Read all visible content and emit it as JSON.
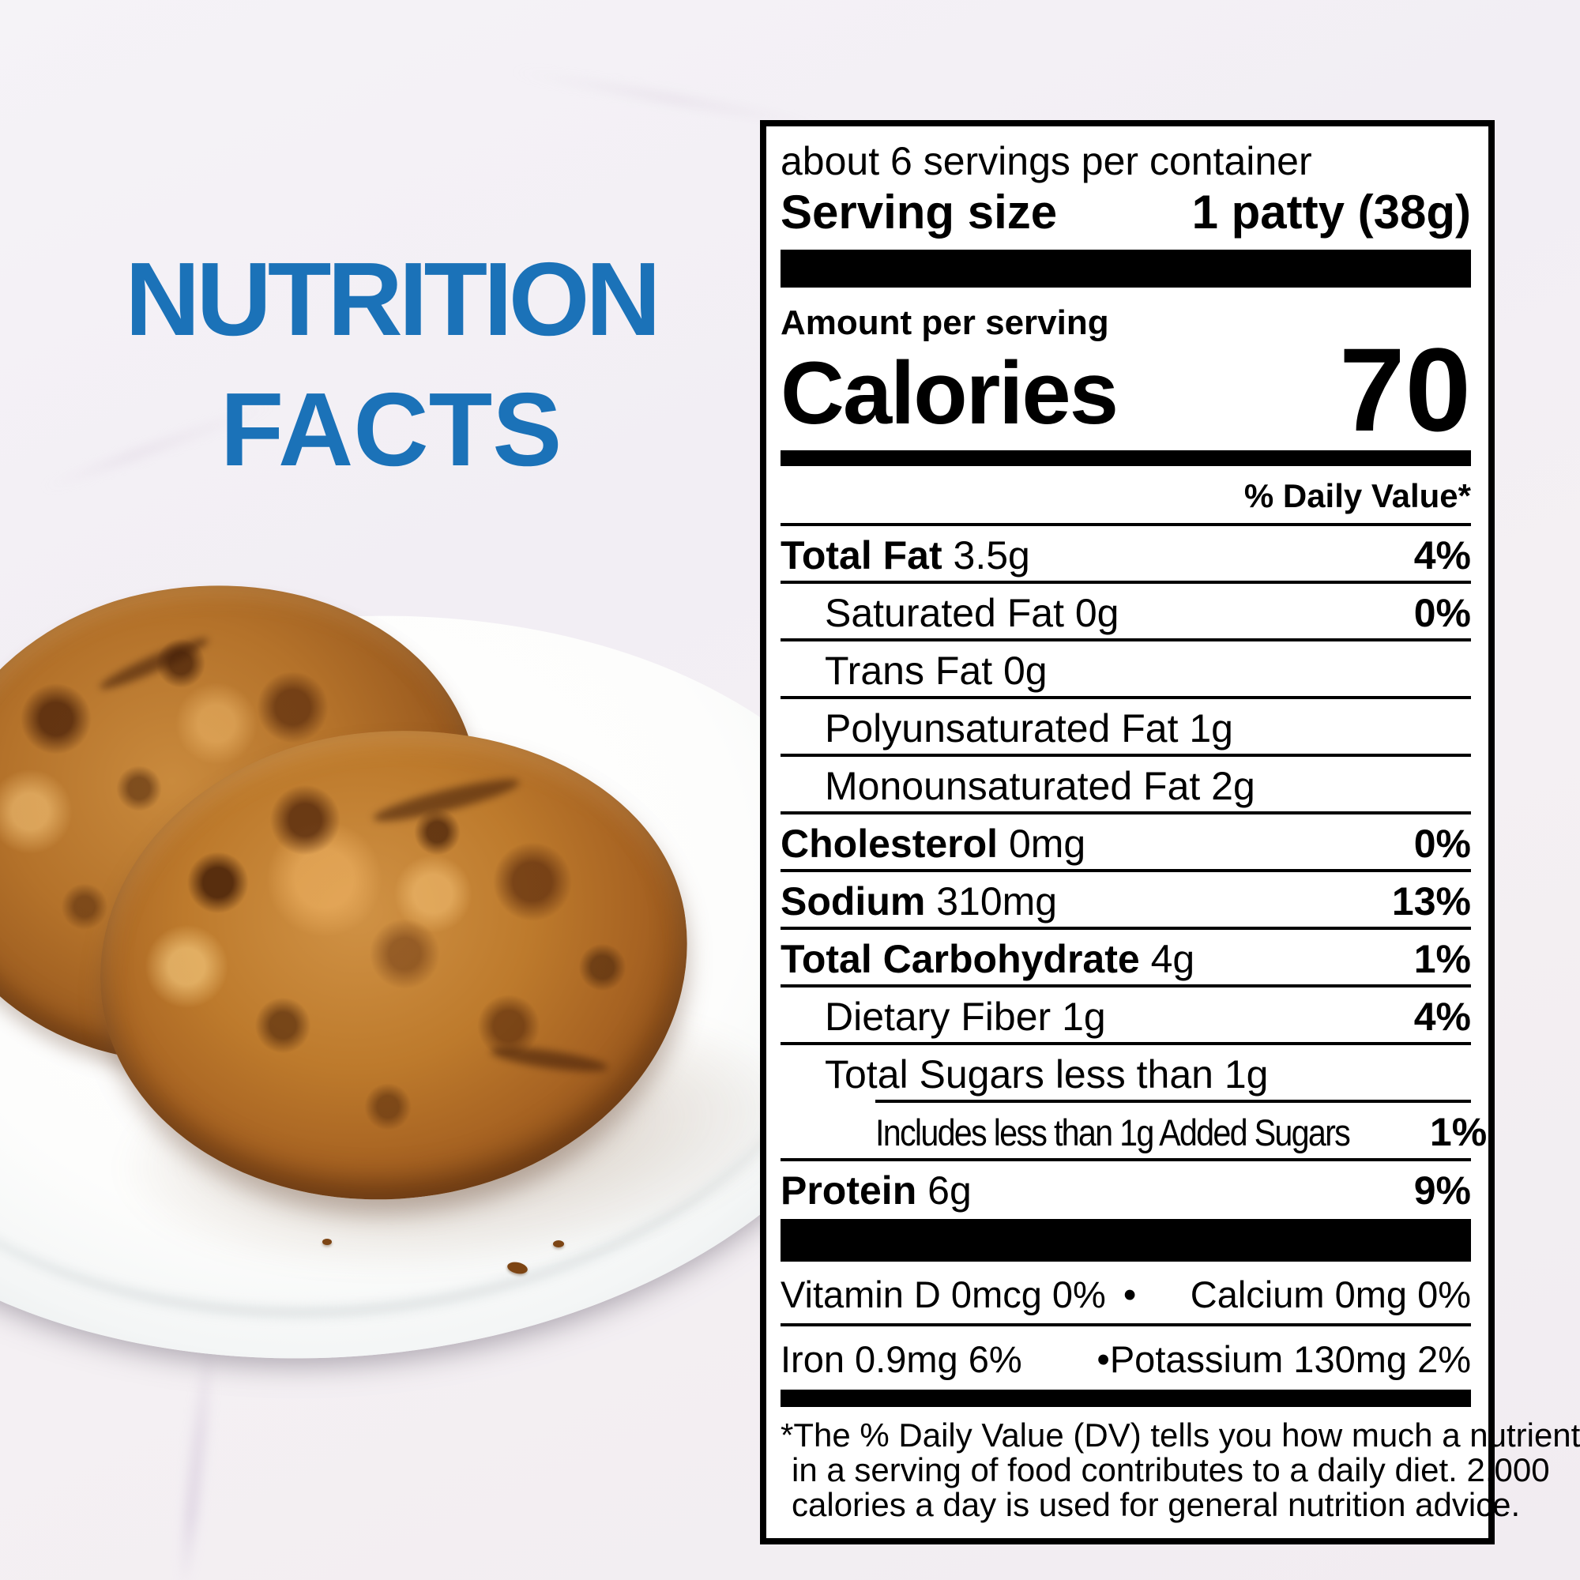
{
  "colors": {
    "accent_blue": "#1b72b8",
    "label_border": "#000000",
    "background": "#f2eef4"
  },
  "title": {
    "line1": "NUTRITION",
    "line2": "FACTS"
  },
  "label": {
    "servings_per_container": "about 6 servings per container",
    "serving_size_label": "Serving size",
    "serving_size_value": "1 patty (38g)",
    "amount_per_serving": "Amount per serving",
    "calories_label": "Calories",
    "calories_value": "70",
    "daily_value_header": "% Daily Value*",
    "rows": [
      {
        "bold": "Total Fat",
        "rest": " 3.5g",
        "pct": "4%"
      },
      {
        "bold": "",
        "rest": "Saturated Fat 0g",
        "pct": "0%"
      },
      {
        "bold": "",
        "rest": "Trans Fat 0g",
        "pct": ""
      },
      {
        "bold": "",
        "rest": "Polyunsaturated Fat 1g",
        "pct": ""
      },
      {
        "bold": "",
        "rest": "Monounsaturated Fat 2g",
        "pct": ""
      },
      {
        "bold": "Cholesterol",
        "rest": " 0mg",
        "pct": "0%"
      },
      {
        "bold": "Sodium",
        "rest": " 310mg",
        "pct": "13%"
      },
      {
        "bold": "Total Carbohydrate",
        "rest": " 4g",
        "pct": "1%"
      },
      {
        "bold": "",
        "rest": "Dietary Fiber 1g",
        "pct": "4%"
      },
      {
        "bold": "",
        "rest": "Total Sugars less than 1g",
        "pct": ""
      },
      {
        "bold": "",
        "rest": "Includes less than 1g Added Sugars",
        "pct": "1%"
      },
      {
        "bold": "Protein",
        "rest": " 6g",
        "pct": "9%"
      }
    ],
    "micronutrients": {
      "bullet": "•",
      "row1_left": "Vitamin D 0mcg 0%",
      "row1_right": "Calcium 0mg 0%",
      "row2_left": "Iron 0.9mg 6%",
      "row2_right": "Potassium 130mg 2%"
    },
    "footnote_lines": [
      "*The % Daily Value (DV) tells you how much a nutrient",
      "in a serving of food contributes to a daily diet. 2,000",
      "calories a day is used for general nutrition advice."
    ]
  }
}
